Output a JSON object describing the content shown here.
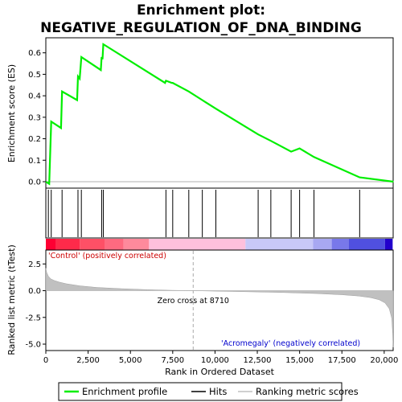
{
  "chart_data": {
    "type": "line",
    "title_line1": "Enrichment plot:",
    "title_line2": "NEGATIVE_REGULATION_OF_DNA_BINDING",
    "top_panel": {
      "ylabel": "Enrichment score (ES)",
      "ylim": [
        -0.03,
        0.67
      ],
      "yticks": [
        "0.0",
        "0.1",
        "0.2",
        "0.3",
        "0.4",
        "0.5",
        "0.6"
      ],
      "ytick_values": [
        0.0,
        0.1,
        0.2,
        0.3,
        0.4,
        0.5,
        0.6
      ],
      "series_name": "Enrichment profile",
      "series_color": "#00ee00",
      "x": [
        0,
        200,
        320,
        900,
        960,
        1850,
        1900,
        2000,
        2100,
        3250,
        3300,
        3350,
        3400,
        7050,
        7100,
        7450,
        7500,
        8450,
        9250,
        10050,
        12550,
        13300,
        14500,
        15000,
        15850,
        18550,
        20550
      ],
      "y": [
        0.0,
        -0.01,
        0.28,
        0.25,
        0.42,
        0.38,
        0.49,
        0.48,
        0.58,
        0.52,
        0.58,
        0.57,
        0.64,
        0.46,
        0.47,
        0.46,
        0.46,
        0.42,
        0.38,
        0.34,
        0.22,
        0.19,
        0.14,
        0.155,
        0.115,
        0.02,
        0.0
      ]
    },
    "hits": {
      "x": [
        150,
        320,
        960,
        1900,
        2100,
        3300,
        3400,
        7100,
        7500,
        8450,
        9250,
        10050,
        12550,
        13300,
        14500,
        15000,
        15850,
        18550
      ]
    },
    "color_bar": {
      "segments": [
        {
          "start": 0,
          "end": 600,
          "color": "#ff0033"
        },
        {
          "start": 600,
          "end": 2000,
          "color": "#ff2a4a"
        },
        {
          "start": 2000,
          "end": 3500,
          "color": "#ff5066"
        },
        {
          "start": 3500,
          "end": 4600,
          "color": "#ff6a80"
        },
        {
          "start": 4600,
          "end": 6100,
          "color": "#ff8a9c"
        },
        {
          "start": 6100,
          "end": 11800,
          "color": "#ffc0dc"
        },
        {
          "start": 11800,
          "end": 15800,
          "color": "#c8c8f8"
        },
        {
          "start": 15800,
          "end": 16900,
          "color": "#a8a8f2"
        },
        {
          "start": 16900,
          "end": 17900,
          "color": "#7878ea"
        },
        {
          "start": 17900,
          "end": 20050,
          "color": "#5050e0"
        },
        {
          "start": 20050,
          "end": 20500,
          "color": "#2200cc"
        }
      ]
    },
    "bottom_panel": {
      "ylabel": "Ranked list metric (tTest)",
      "ylim": [
        -5.6,
        3.8
      ],
      "yticks": [
        "2.5",
        "0.0",
        "-2.5",
        "-5.0"
      ],
      "ytick_values": [
        2.5,
        0.0,
        -2.5,
        -5.0
      ],
      "metric_x": [
        0,
        50,
        150,
        300,
        500,
        800,
        1200,
        2000,
        3000,
        4500,
        6000,
        7500,
        8710,
        10000,
        12000,
        14000,
        16000,
        17500,
        18500,
        19200,
        19700,
        20050,
        20300,
        20450,
        20500,
        20530
      ],
      "metric_y": [
        2.1,
        1.7,
        1.35,
        1.1,
        0.95,
        0.8,
        0.65,
        0.45,
        0.3,
        0.18,
        0.09,
        0.03,
        0.0,
        -0.04,
        -0.1,
        -0.17,
        -0.27,
        -0.38,
        -0.5,
        -0.65,
        -0.85,
        -1.15,
        -1.7,
        -2.6,
        -4.0,
        -5.3
      ],
      "zero_cross_label": "Zero cross at 8710",
      "zero_cross_x": 8710,
      "positive_label": "'Control' (positively correlated)",
      "negative_label": "'Acromegaly' (negatively correlated)"
    },
    "xlabel": "Rank in Ordered Dataset",
    "xlim": [
      0,
      20530
    ],
    "xticks": [
      "0",
      "2,500",
      "5,000",
      "7,500",
      "10,000",
      "12,500",
      "15,000",
      "17,500",
      "20,000"
    ],
    "xtick_values": [
      0,
      2500,
      5000,
      7500,
      10000,
      12500,
      15000,
      17500,
      20000
    ],
    "legend": {
      "items": [
        {
          "label": "Enrichment profile",
          "color": "#00ee00"
        },
        {
          "label": "Hits",
          "color": "#000000"
        },
        {
          "label": "Ranking metric scores",
          "color": "#c0c0c0"
        }
      ]
    }
  }
}
